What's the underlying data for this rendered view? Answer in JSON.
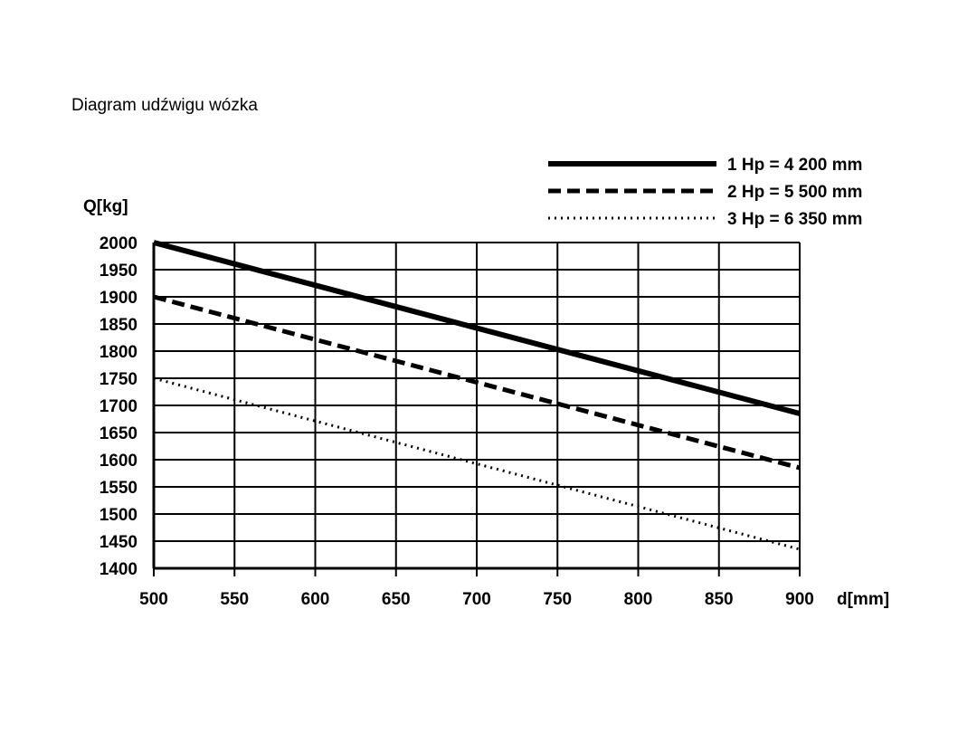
{
  "chart_data": {
    "type": "line",
    "title": "Diagram udźwigu wózka",
    "xlabel": "d[mm]",
    "ylabel": "Q[kg]",
    "xlim": [
      500,
      900
    ],
    "ylim": [
      1400,
      2000
    ],
    "x_ticks": [
      500,
      550,
      600,
      650,
      700,
      750,
      800,
      850,
      900
    ],
    "y_ticks": [
      2000,
      1950,
      1900,
      1850,
      1800,
      1750,
      1700,
      1650,
      1600,
      1550,
      1500,
      1450,
      1400
    ],
    "grid": true,
    "legend_position": "top-right",
    "series": [
      {
        "name": "1 Hp = 4 200 mm",
        "style": "solid",
        "x": [
          500,
          900
        ],
        "y": [
          2000,
          1685
        ]
      },
      {
        "name": "2 Hp = 5 500 mm",
        "style": "dashed",
        "x": [
          500,
          900
        ],
        "y": [
          1900,
          1585
        ]
      },
      {
        "name": "3 Hp = 6 350 mm",
        "style": "dotted",
        "x": [
          500,
          900
        ],
        "y": [
          1750,
          1435
        ]
      }
    ]
  }
}
